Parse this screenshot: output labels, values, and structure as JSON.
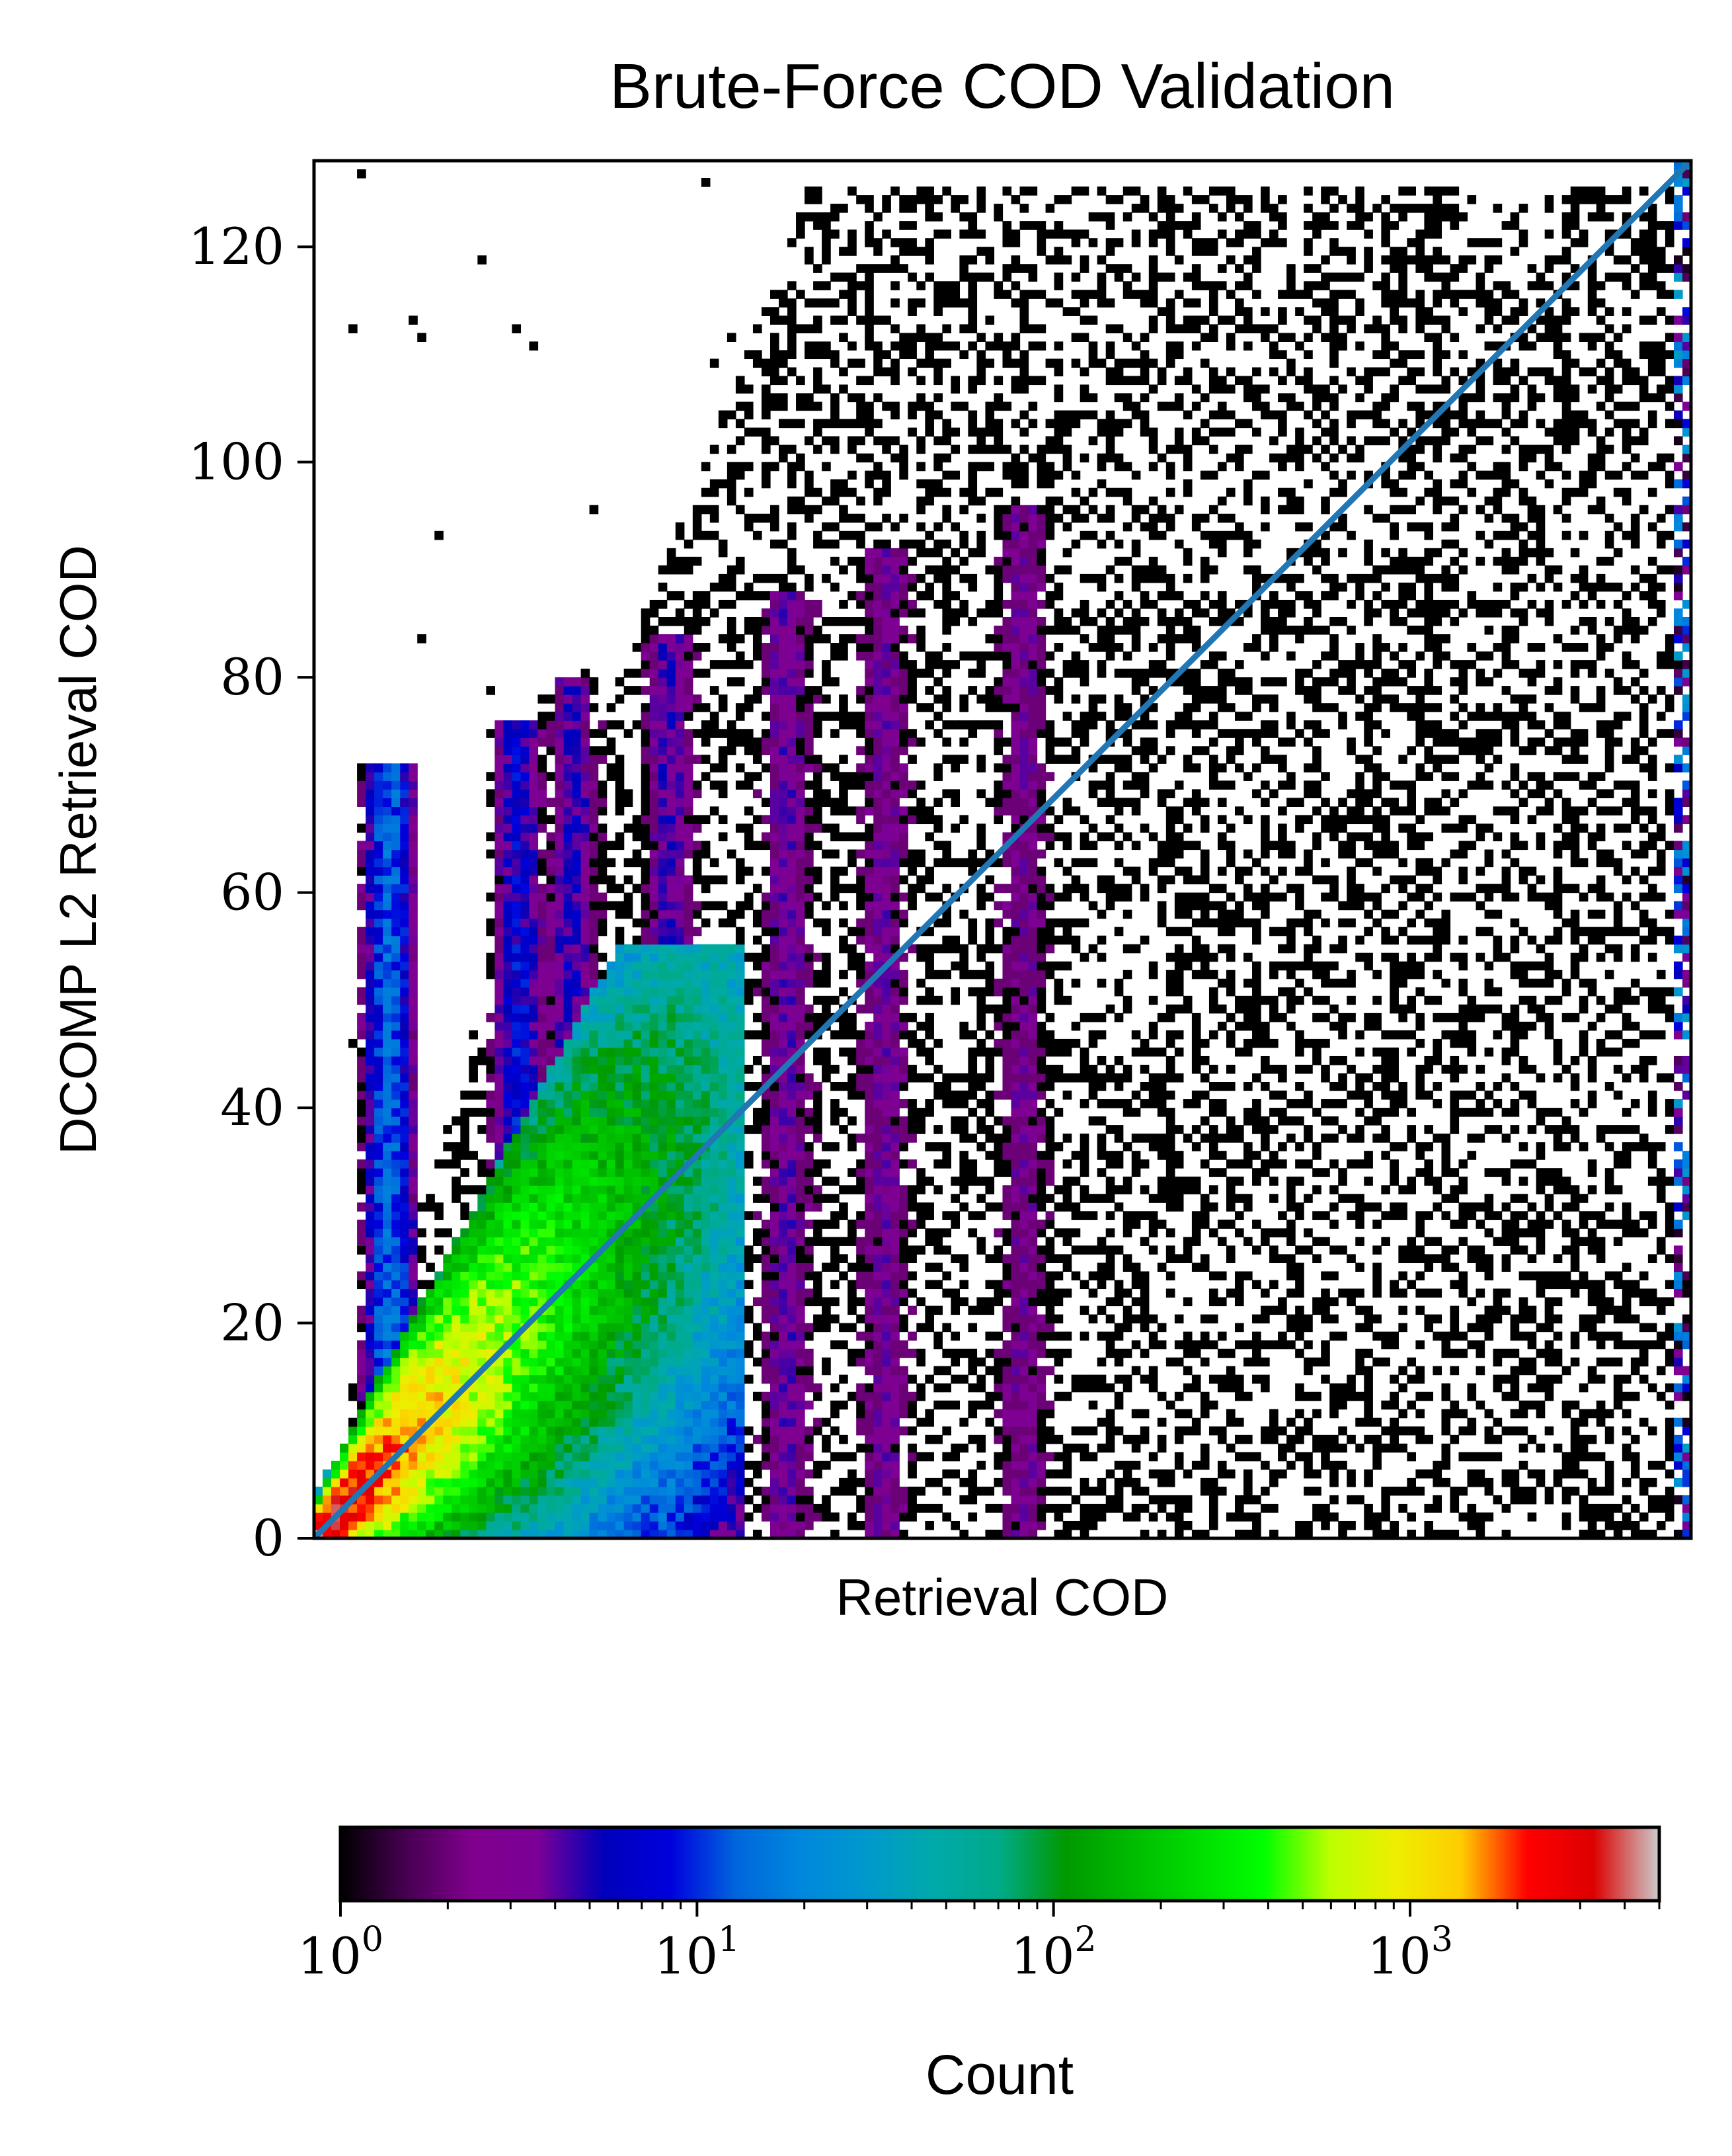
{
  "chart_data": {
    "type": "heatmap",
    "subtype": "2d-histogram",
    "title": "Brute-Force COD Validation",
    "xlabel": "Retrieval COD",
    "ylabel": "DCOMP L2 Retrieval COD",
    "xlim": [
      0,
      128
    ],
    "ylim": [
      0,
      128
    ],
    "x_ticks_shown": false,
    "y_ticks": [
      0,
      20,
      40,
      60,
      80,
      100,
      120
    ],
    "y_tick_labels": [
      "0",
      "20",
      "40",
      "60",
      "80",
      "100",
      "120"
    ],
    "grid": false,
    "one_to_one_line": {
      "x": [
        0,
        128
      ],
      "y": [
        0,
        128
      ],
      "color": "#1f77b4"
    },
    "colorbar": {
      "label": "Count",
      "scale": "log",
      "range": [
        1,
        5000
      ],
      "orientation": "horizontal",
      "placement": "bottom",
      "colormap": "nipy_spectral",
      "major_ticks": [
        1,
        10,
        100,
        1000
      ],
      "major_tick_labels": [
        {
          "base": "10",
          "exp": "0"
        },
        {
          "base": "10",
          "exp": "1"
        },
        {
          "base": "10",
          "exp": "2"
        },
        {
          "base": "10",
          "exp": "3"
        }
      ]
    },
    "density_description": {
      "core_ridge": {
        "x": [
          0,
          30
        ],
        "y": [
          0,
          50
        ],
        "peak_count": 5000
      },
      "column_bands_x": [
        7,
        19,
        24,
        33,
        44,
        53,
        66
      ],
      "saturation_column_x": 128
    }
  }
}
